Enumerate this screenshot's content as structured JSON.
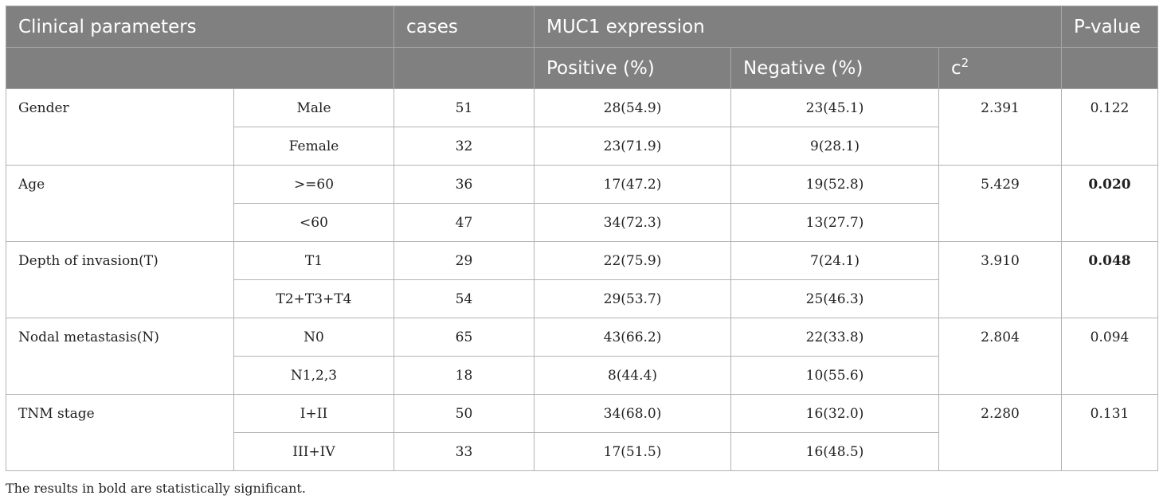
{
  "header": {
    "clinical_parameters": "Clinical parameters",
    "cases": "cases",
    "muc1_expression": "MUC1 expression",
    "p_value": "P-value",
    "positive": "Positive (%)",
    "negative": "Negative (%)",
    "chi2_base": "c",
    "chi2_sup": "2"
  },
  "groups": [
    {
      "parameter": "Gender",
      "chi2": "2.391",
      "p_value": "0.122",
      "significant": false,
      "rows": [
        {
          "category": "Male",
          "cases": "51",
          "positive": "28(54.9)",
          "negative": "23(45.1)"
        },
        {
          "category": "Female",
          "cases": "32",
          "positive": "23(71.9)",
          "negative": "9(28.1)"
        }
      ]
    },
    {
      "parameter": "Age",
      "chi2": "5.429",
      "p_value": "0.020",
      "significant": true,
      "rows": [
        {
          "category": ">=60",
          "cases": "36",
          "positive": "17(47.2)",
          "negative": "19(52.8)"
        },
        {
          "category": "<60",
          "cases": "47",
          "positive": "34(72.3)",
          "negative": "13(27.7)"
        }
      ]
    },
    {
      "parameter": "Depth of invasion(T)",
      "chi2": "3.910",
      "p_value": "0.048",
      "significant": true,
      "rows": [
        {
          "category": "T1",
          "cases": "29",
          "positive": "22(75.9)",
          "negative": "7(24.1)"
        },
        {
          "category": "T2+T3+T4",
          "cases": "54",
          "positive": "29(53.7)",
          "negative": "25(46.3)"
        }
      ]
    },
    {
      "parameter": "Nodal metastasis(N)",
      "chi2": "2.804",
      "p_value": "0.094",
      "significant": false,
      "rows": [
        {
          "category": "N0",
          "cases": "65",
          "positive": "43(66.2)",
          "negative": "22(33.8)"
        },
        {
          "category": "N1,2,3",
          "cases": "18",
          "positive": "8(44.4)",
          "negative": "10(55.6)"
        }
      ]
    },
    {
      "parameter": "TNM stage",
      "chi2": "2.280",
      "p_value": "0.131",
      "significant": false,
      "rows": [
        {
          "category": "I+II",
          "cases": "50",
          "positive": "34(68.0)",
          "negative": "16(32.0)"
        },
        {
          "category": "III+IV",
          "cases": "33",
          "positive": "17(51.5)",
          "negative": "16(48.5)"
        }
      ]
    }
  ],
  "footnote": "The results in bold are statistically significant."
}
